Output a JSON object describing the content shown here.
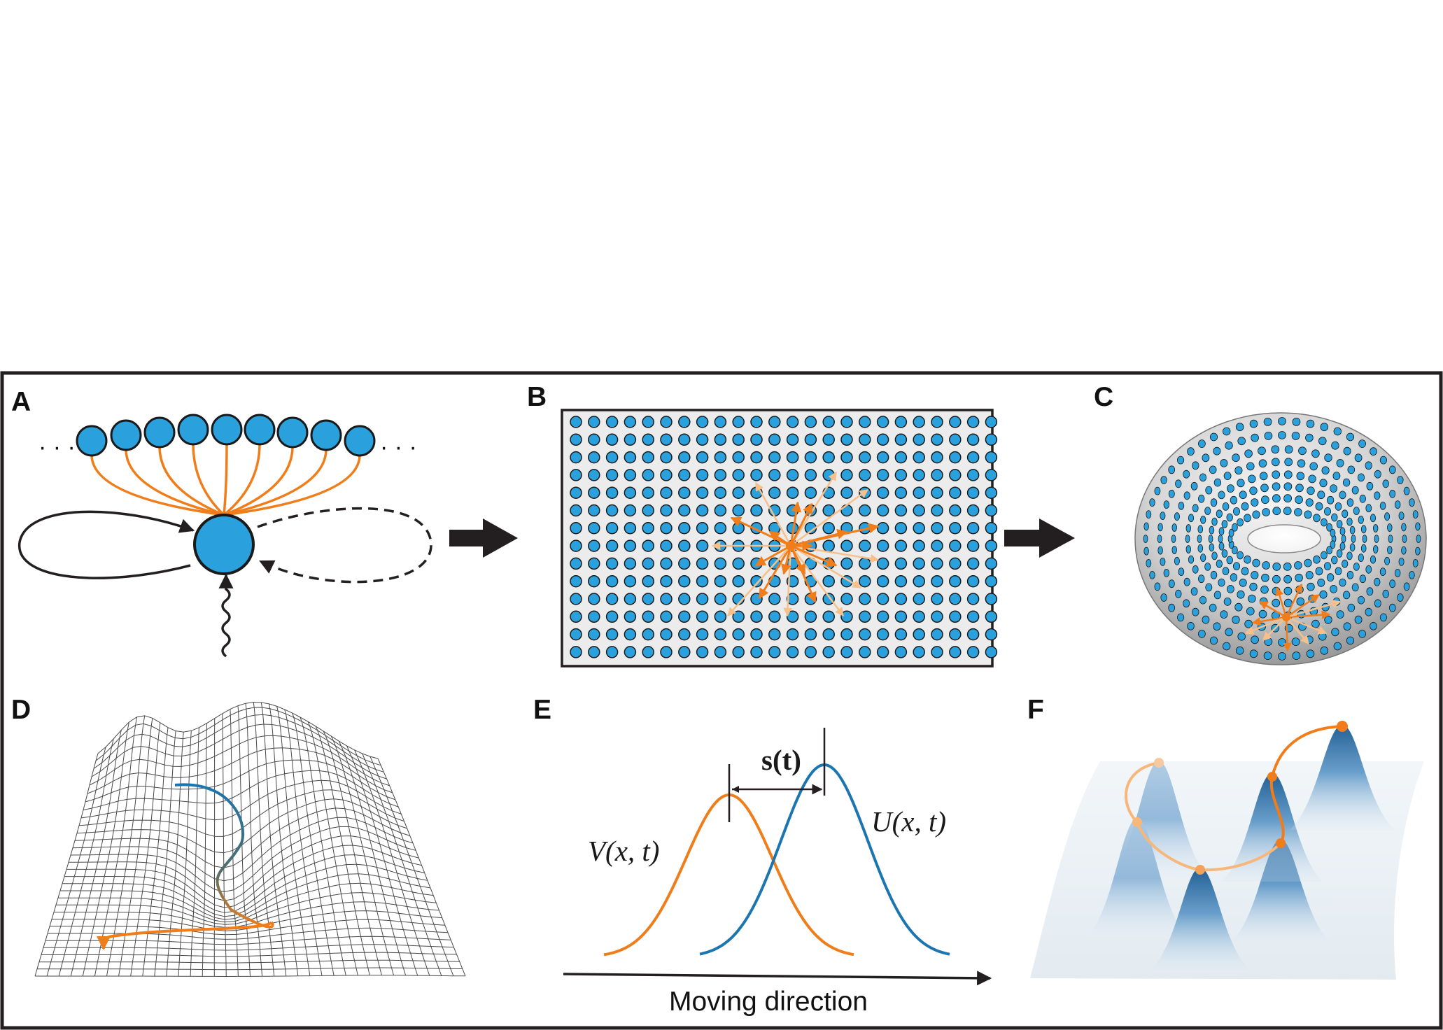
{
  "figure": {
    "panels": [
      {
        "id": "A",
        "label": "A"
      },
      {
        "id": "B",
        "label": "B"
      },
      {
        "id": "C",
        "label": "C"
      },
      {
        "id": "D",
        "label": "D"
      },
      {
        "id": "E",
        "label": "E"
      },
      {
        "id": "F",
        "label": "F"
      }
    ],
    "panel_a": {
      "ellipsis_left": "· · ·",
      "ellipsis_right": "· · ·",
      "presynaptic_count": 9
    },
    "panel_b": {
      "rows": 14,
      "cols": 24
    },
    "panel_e": {
      "shift_label": "s(t)",
      "curve_v_label": "V(x, t)",
      "curve_u_label": "U(x, t)",
      "axis_label": "Moving direction"
    },
    "colors": {
      "neuron": "#2aa1dc",
      "neuron_stroke": "#1a1a1a",
      "connection": "#f07d1a",
      "curve_v": "#ef7d1a",
      "curve_u": "#1b75b0",
      "frame": "#231f20",
      "grid_bg": "#ececec"
    }
  }
}
